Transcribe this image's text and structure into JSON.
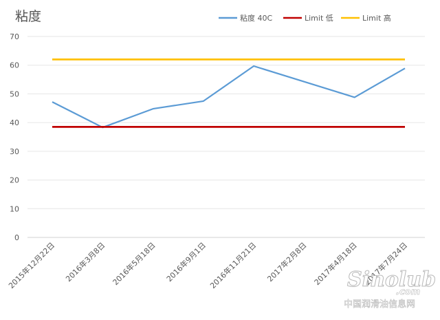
{
  "chart_data": {
    "type": "line",
    "title": "粘度",
    "xlabel": "",
    "ylabel": "",
    "categories": [
      "2015年12月22日",
      "2016年3月8日",
      "2016年5月18日",
      "2016年9月1日",
      "2016年11月21日",
      "2017年2月8日",
      "2017年4月18日",
      "2017年7月24日"
    ],
    "yticks": [
      0,
      10,
      20,
      30,
      40,
      50,
      60,
      70
    ],
    "ylim": [
      0,
      70
    ],
    "grid": true,
    "legend_position": "top-right",
    "series": [
      {
        "name": "粘度 40C",
        "color": "#5b9bd5",
        "values": [
          47.2,
          38.3,
          44.8,
          47.5,
          59.7,
          null,
          48.8,
          58.9
        ]
      },
      {
        "name": "Limit 低",
        "color": "#c00000",
        "values": [
          38.5,
          38.5,
          38.5,
          38.5,
          38.5,
          38.5,
          38.5,
          38.5
        ]
      },
      {
        "name": "Limit 高",
        "color": "#ffc000",
        "values": [
          62,
          62,
          62,
          62,
          62,
          62,
          62,
          62
        ]
      }
    ]
  },
  "watermark": {
    "logo_text": "Sinolub",
    "logo_suffix": ".com",
    "caption": "中国润滑油信息网"
  }
}
